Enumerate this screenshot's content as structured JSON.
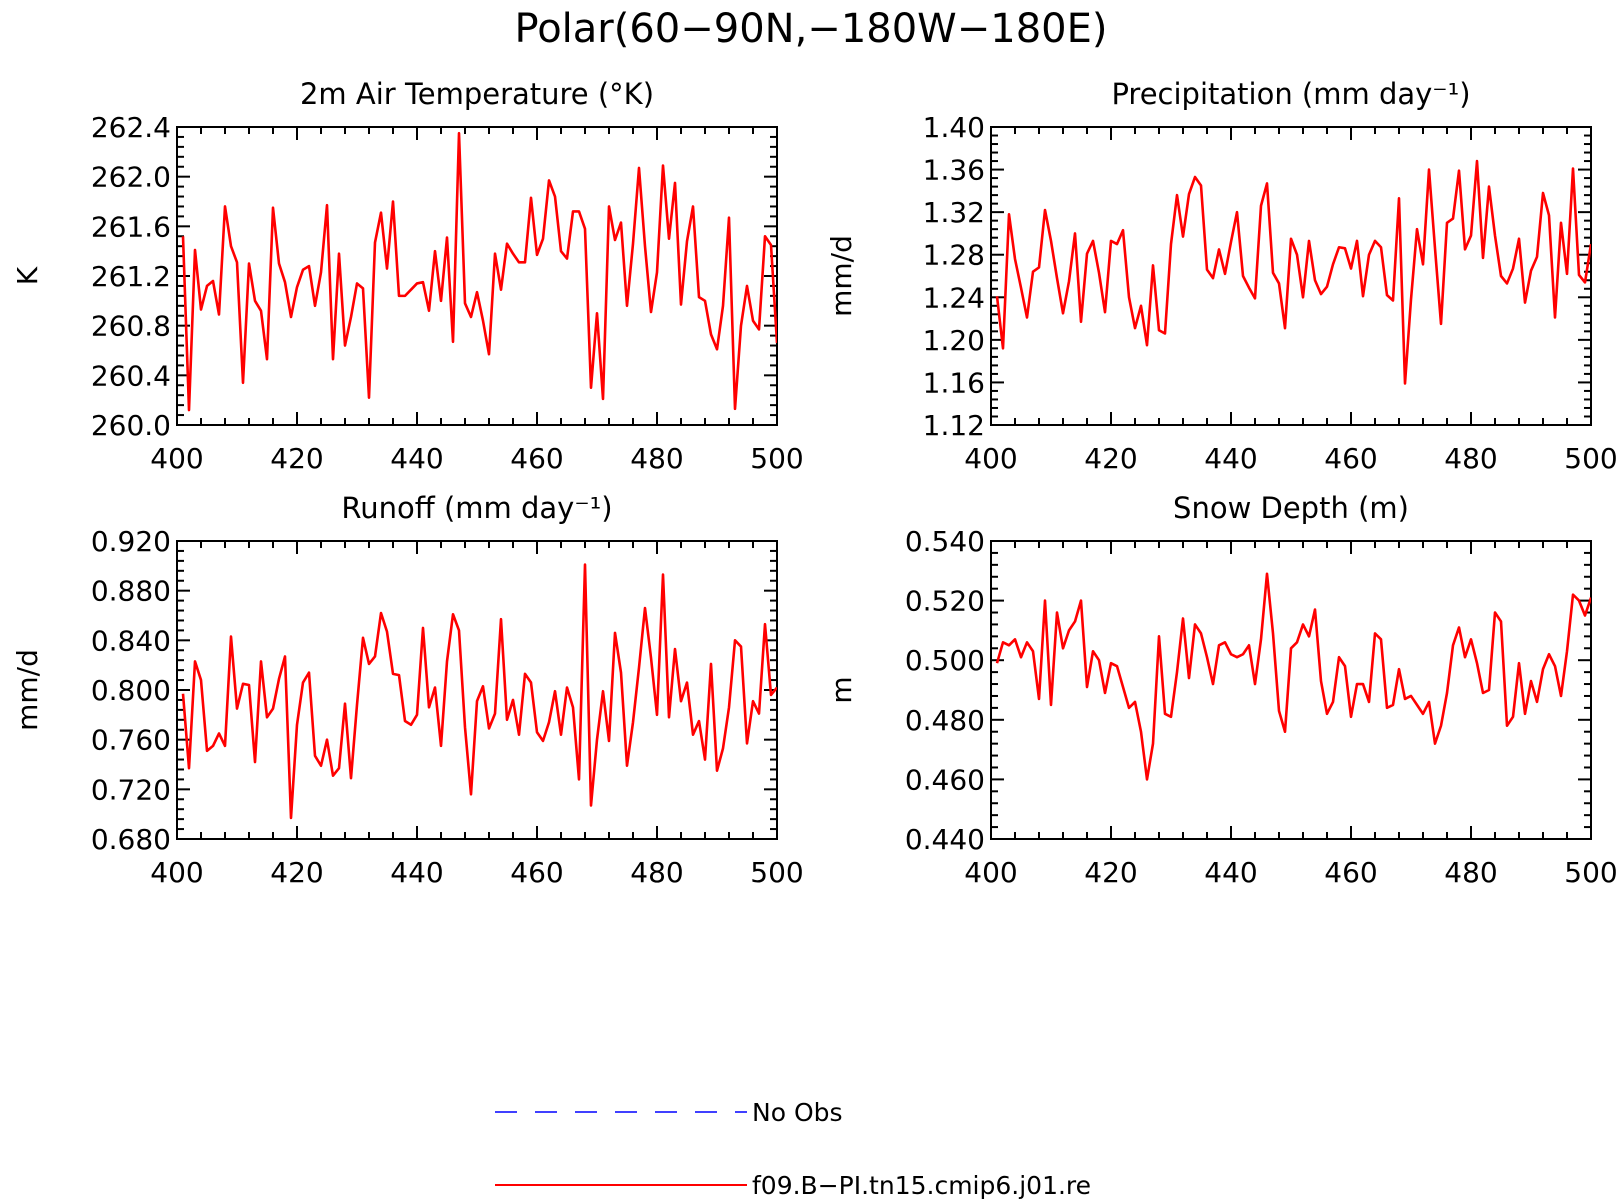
{
  "figure": {
    "title": "Polar(60−90N,−180W−180E)"
  },
  "colors": {
    "model": "#ff0000",
    "obs": "#0000ff",
    "axis": "#000000"
  },
  "legend": {
    "obs_label": "No Obs",
    "model_label": "f09.B−PI.tn15.cmip6.j01.re"
  },
  "chart_data": [
    {
      "type": "line",
      "title": "2m Air Temperature (°K)",
      "ylabel": "K",
      "xlim": [
        400,
        500
      ],
      "ylim": [
        260.0,
        262.4
      ],
      "xticks": [
        400,
        420,
        440,
        460,
        480,
        500
      ],
      "xtick_labels": [
        "400",
        "420",
        "440",
        "460",
        "480",
        "500"
      ],
      "yticks": [
        260.0,
        260.4,
        260.8,
        261.2,
        261.6,
        262.0,
        262.4
      ],
      "ytick_labels": [
        "260.0",
        "260.4",
        "260.8",
        "261.2",
        "261.6",
        "262.0",
        "262.4"
      ],
      "x_start": 401,
      "x_step": 1,
      "series": [
        {
          "name": "f09.B−PI.tn15.cmip6.j01.re",
          "values": [
            261.52,
            260.12,
            261.41,
            260.93,
            261.12,
            261.16,
            260.89,
            261.76,
            261.44,
            261.31,
            260.34,
            261.3,
            261.0,
            260.92,
            260.53,
            261.75,
            261.3,
            261.15,
            260.87,
            261.11,
            261.25,
            261.28,
            260.96,
            261.23,
            261.77,
            260.53,
            261.38,
            260.64,
            260.87,
            261.14,
            261.1,
            260.22,
            261.47,
            261.71,
            261.26,
            261.8,
            261.04,
            261.04,
            261.09,
            261.14,
            261.15,
            260.92,
            261.4,
            261.0,
            261.51,
            260.67,
            262.35,
            260.98,
            260.87,
            261.07,
            260.84,
            260.57,
            261.38,
            261.09,
            261.46,
            261.38,
            261.31,
            261.31,
            261.83,
            261.37,
            261.5,
            261.97,
            261.84,
            261.4,
            261.34,
            261.72,
            261.72,
            261.58,
            260.3,
            260.9,
            260.21,
            261.76,
            261.49,
            261.63,
            260.96,
            261.46,
            262.07,
            261.44,
            260.91,
            261.23,
            262.09,
            261.5,
            261.95,
            260.97,
            261.48,
            261.76,
            261.03,
            261.0,
            260.73,
            260.61,
            260.96,
            261.67,
            260.13,
            260.8,
            261.12,
            260.84,
            260.77,
            261.52,
            261.45,
            260.66
          ]
        }
      ]
    },
    {
      "type": "line",
      "title": "Precipitation (mm day⁻¹)",
      "ylabel": "mm/d",
      "xlim": [
        400,
        500
      ],
      "ylim": [
        1.12,
        1.4
      ],
      "xticks": [
        400,
        420,
        440,
        460,
        480,
        500
      ],
      "xtick_labels": [
        "400",
        "420",
        "440",
        "460",
        "480",
        "500"
      ],
      "yticks": [
        1.12,
        1.16,
        1.2,
        1.24,
        1.28,
        1.32,
        1.36,
        1.4
      ],
      "ytick_labels": [
        "1.12",
        "1.16",
        "1.20",
        "1.24",
        "1.28",
        "1.32",
        "1.36",
        "1.40"
      ],
      "x_start": 401,
      "x_step": 1,
      "series": [
        {
          "name": "f09.B−PI.tn15.cmip6.j01.re",
          "values": [
            1.241,
            1.192,
            1.318,
            1.276,
            1.249,
            1.221,
            1.264,
            1.268,
            1.322,
            1.293,
            1.258,
            1.225,
            1.255,
            1.3,
            1.217,
            1.281,
            1.293,
            1.263,
            1.226,
            1.293,
            1.29,
            1.303,
            1.24,
            1.211,
            1.232,
            1.195,
            1.27,
            1.209,
            1.206,
            1.29,
            1.336,
            1.297,
            1.337,
            1.353,
            1.345,
            1.266,
            1.258,
            1.285,
            1.262,
            1.292,
            1.32,
            1.26,
            1.249,
            1.239,
            1.326,
            1.347,
            1.263,
            1.253,
            1.211,
            1.295,
            1.28,
            1.24,
            1.293,
            1.256,
            1.243,
            1.25,
            1.271,
            1.287,
            1.286,
            1.267,
            1.293,
            1.241,
            1.28,
            1.293,
            1.287,
            1.242,
            1.237,
            1.333,
            1.159,
            1.238,
            1.304,
            1.271,
            1.36,
            1.286,
            1.215,
            1.31,
            1.314,
            1.359,
            1.285,
            1.298,
            1.368,
            1.277,
            1.344,
            1.298,
            1.26,
            1.253,
            1.267,
            1.295,
            1.235,
            1.265,
            1.278,
            1.338,
            1.317,
            1.221,
            1.31,
            1.262,
            1.361,
            1.261,
            1.254,
            1.29
          ]
        }
      ]
    },
    {
      "type": "line",
      "title": "Runoff (mm day⁻¹)",
      "ylabel": "mm/d",
      "xlim": [
        400,
        500
      ],
      "ylim": [
        0.68,
        0.92
      ],
      "xticks": [
        400,
        420,
        440,
        460,
        480,
        500
      ],
      "xtick_labels": [
        "400",
        "420",
        "440",
        "460",
        "480",
        "500"
      ],
      "yticks": [
        0.68,
        0.72,
        0.76,
        0.8,
        0.84,
        0.88,
        0.92
      ],
      "ytick_labels": [
        "0.680",
        "0.720",
        "0.760",
        "0.800",
        "0.840",
        "0.880",
        "0.920"
      ],
      "x_start": 401,
      "x_step": 1,
      "series": [
        {
          "name": "f09.B−PI.tn15.cmip6.j01.re",
          "values": [
            0.797,
            0.737,
            0.823,
            0.808,
            0.751,
            0.755,
            0.765,
            0.755,
            0.843,
            0.785,
            0.805,
            0.804,
            0.742,
            0.823,
            0.778,
            0.785,
            0.809,
            0.827,
            0.697,
            0.772,
            0.806,
            0.814,
            0.747,
            0.739,
            0.76,
            0.731,
            0.737,
            0.789,
            0.729,
            0.788,
            0.842,
            0.821,
            0.827,
            0.862,
            0.847,
            0.813,
            0.812,
            0.775,
            0.772,
            0.78,
            0.85,
            0.786,
            0.802,
            0.755,
            0.823,
            0.861,
            0.848,
            0.77,
            0.716,
            0.791,
            0.803,
            0.769,
            0.781,
            0.857,
            0.776,
            0.792,
            0.764,
            0.813,
            0.806,
            0.766,
            0.759,
            0.774,
            0.799,
            0.764,
            0.802,
            0.786,
            0.728,
            0.901,
            0.707,
            0.76,
            0.799,
            0.759,
            0.846,
            0.814,
            0.739,
            0.774,
            0.818,
            0.866,
            0.826,
            0.78,
            0.893,
            0.778,
            0.833,
            0.791,
            0.806,
            0.764,
            0.775,
            0.744,
            0.821,
            0.735,
            0.753,
            0.786,
            0.84,
            0.835,
            0.757,
            0.791,
            0.781,
            0.853,
            0.796,
            0.802
          ]
        }
      ]
    },
    {
      "type": "line",
      "title": "Snow Depth (m)",
      "ylabel": "m",
      "xlim": [
        400,
        500
      ],
      "ylim": [
        0.44,
        0.54
      ],
      "xticks": [
        400,
        420,
        440,
        460,
        480,
        500
      ],
      "xtick_labels": [
        "400",
        "420",
        "440",
        "460",
        "480",
        "500"
      ],
      "yticks": [
        0.44,
        0.46,
        0.48,
        0.5,
        0.52,
        0.54
      ],
      "ytick_labels": [
        "0.440",
        "0.460",
        "0.480",
        "0.500",
        "0.520",
        "0.540"
      ],
      "x_start": 401,
      "x_step": 1,
      "series": [
        {
          "name": "f09.B−PI.tn15.cmip6.j01.re",
          "values": [
            0.499,
            0.506,
            0.505,
            0.507,
            0.501,
            0.506,
            0.503,
            0.487,
            0.52,
            0.485,
            0.516,
            0.504,
            0.51,
            0.513,
            0.52,
            0.491,
            0.503,
            0.5,
            0.489,
            0.499,
            0.498,
            0.491,
            0.484,
            0.486,
            0.476,
            0.46,
            0.472,
            0.508,
            0.482,
            0.481,
            0.496,
            0.514,
            0.494,
            0.512,
            0.509,
            0.501,
            0.492,
            0.505,
            0.506,
            0.502,
            0.501,
            0.502,
            0.505,
            0.492,
            0.507,
            0.529,
            0.509,
            0.483,
            0.476,
            0.504,
            0.506,
            0.512,
            0.508,
            0.517,
            0.493,
            0.482,
            0.486,
            0.501,
            0.498,
            0.481,
            0.492,
            0.492,
            0.486,
            0.509,
            0.507,
            0.484,
            0.485,
            0.497,
            0.487,
            0.488,
            0.485,
            0.482,
            0.486,
            0.472,
            0.478,
            0.489,
            0.505,
            0.511,
            0.501,
            0.507,
            0.499,
            0.489,
            0.49,
            0.516,
            0.513,
            0.478,
            0.481,
            0.499,
            0.482,
            0.493,
            0.486,
            0.497,
            0.502,
            0.498,
            0.488,
            0.503,
            0.522,
            0.52,
            0.515,
            0.521
          ]
        }
      ]
    }
  ]
}
